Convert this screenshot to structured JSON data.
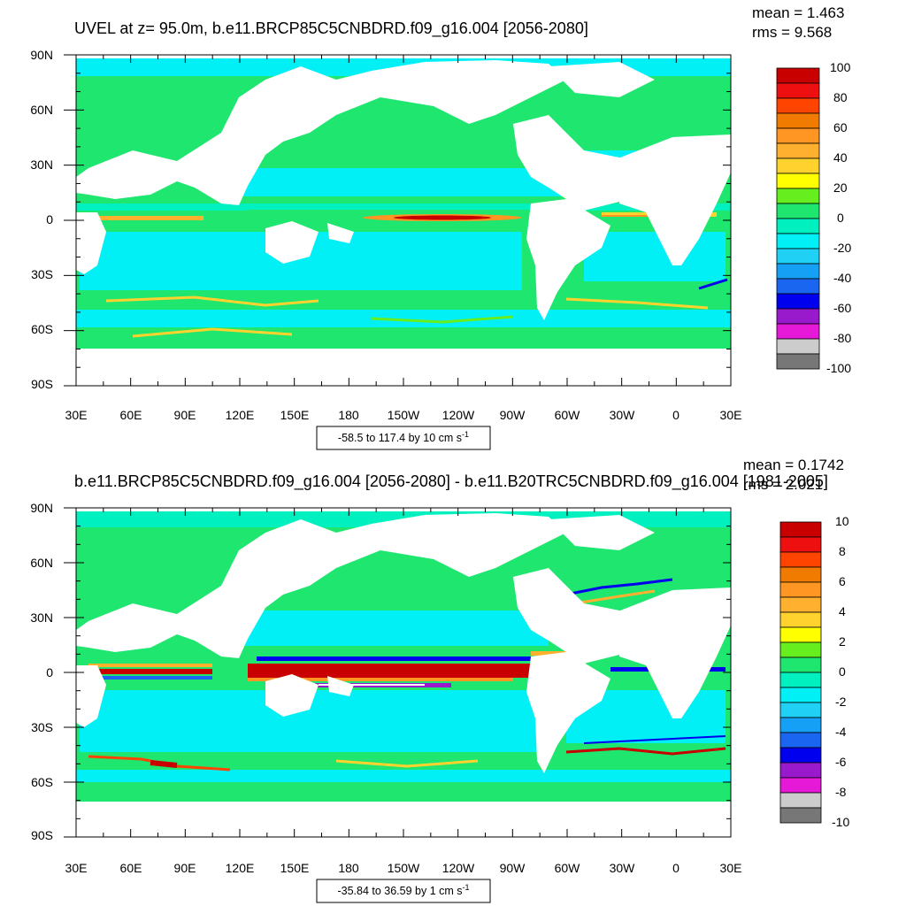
{
  "panels": [
    {
      "title": "UVEL at z=  95.0m, b.e11.BRCP85C5CNBDRD.f09_g16.004 [2056-2080]",
      "mean_label": "mean = 1.463",
      "rms_label": "rms = 9.568",
      "range_label": "-58.5 to 117.4 by 10 cm s",
      "range_sup": "-1",
      "colorbar_labels": [
        "100",
        "80",
        "60",
        "40",
        "20",
        "0",
        "-20",
        "-40",
        "-60",
        "-80",
        "-100"
      ],
      "lat_ticks": [
        "90N",
        "60N",
        "30N",
        "0",
        "30S",
        "60S",
        "90S"
      ],
      "lon_ticks": [
        "30E",
        "60E",
        "90E",
        "120E",
        "150E",
        "180",
        "150W",
        "120W",
        "90W",
        "60W",
        "30W",
        "0",
        "30E"
      ]
    },
    {
      "title": "b.e11.BRCP85C5CNBDRD.f09_g16.004 [2056-2080] - b.e11.B20TRC5CNBDRD.f09_g16.004 [1981-2005]",
      "mean_label": "mean = 0.1742",
      "rms_label": "rms = 2.021",
      "range_label": "-35.84 to 36.59 by 1 cm s",
      "range_sup": "-1",
      "colorbar_labels": [
        "10",
        "8",
        "6",
        "4",
        "2",
        "0",
        "-2",
        "-4",
        "-6",
        "-8",
        "-10"
      ],
      "lat_ticks": [
        "90N",
        "60N",
        "30N",
        "0",
        "30S",
        "60S",
        "90S"
      ],
      "lon_ticks": [
        "30E",
        "60E",
        "90E",
        "120E",
        "150E",
        "180",
        "150W",
        "120W",
        "90W",
        "60W",
        "30W",
        "0",
        "30E"
      ]
    }
  ],
  "colors": {
    "palette": [
      "#777777",
      "#cccccc",
      "#e619d9",
      "#9919cc",
      "#0000ee",
      "#1a66f0",
      "#15a0f5",
      "#20d0f5",
      "#00f0f5",
      "#00f0c0",
      "#1ee66e",
      "#66ee1e",
      "#ffff00",
      "#ffd22e",
      "#ffb02e",
      "#ff9522",
      "#f07b00",
      "#ff4400",
      "#ee1010",
      "#c80000"
    ],
    "ocean_base": "#1ee66e",
    "land": "#ffffff"
  }
}
